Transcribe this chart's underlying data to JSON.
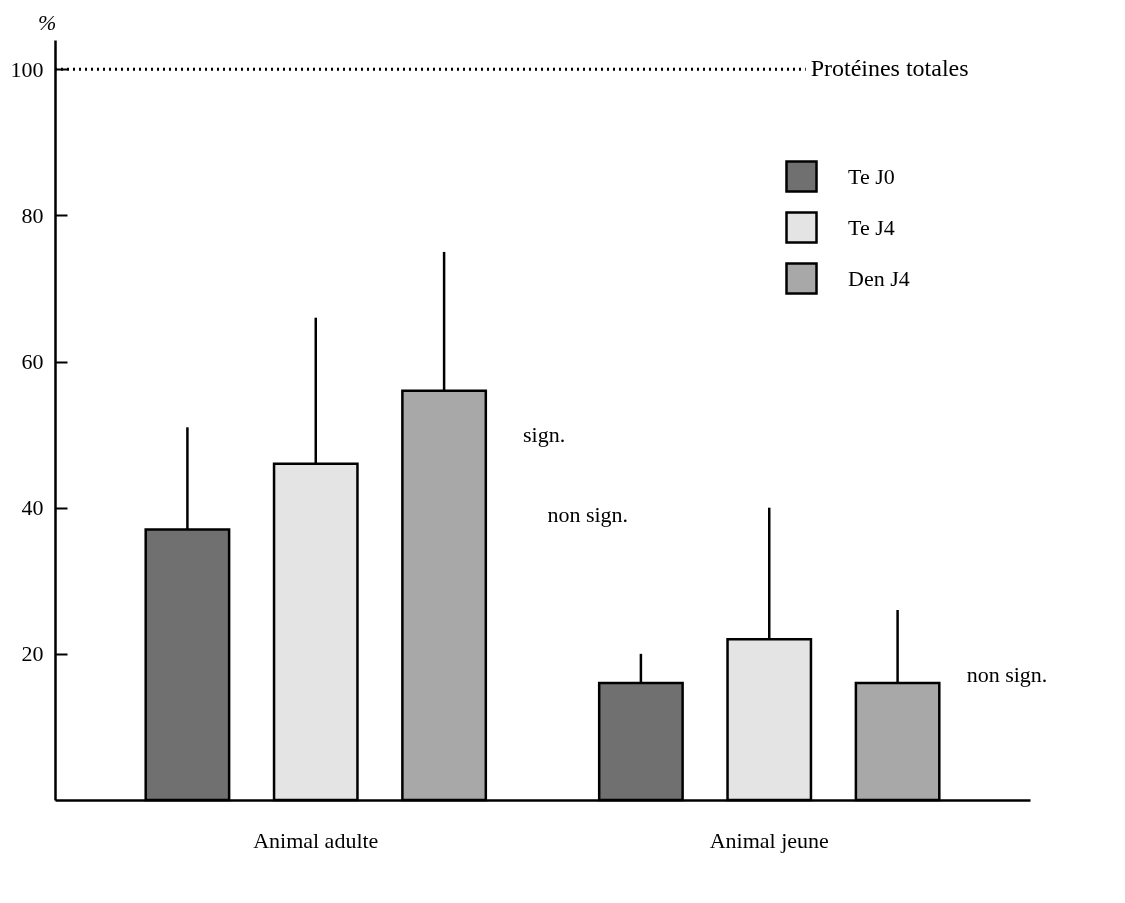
{
  "chart_data": {
    "type": "bar",
    "ylabel": "%",
    "categories": [
      "Animal adulte",
      "Animal jeune"
    ],
    "series": [
      {
        "name": "Te J0",
        "color": "#707070",
        "values": [
          37,
          16
        ],
        "errors": [
          [
            37,
            51
          ],
          [
            16,
            20
          ]
        ]
      },
      {
        "name": "Te J4",
        "color": "#e4e4e4",
        "values": [
          46,
          22
        ],
        "errors": [
          [
            46,
            66
          ],
          [
            22,
            40
          ]
        ]
      },
      {
        "name": "Den J4",
        "color": "#a8a8a8",
        "values": [
          56,
          16
        ],
        "errors": [
          [
            56,
            75
          ],
          [
            16,
            26
          ]
        ]
      }
    ],
    "ylim": [
      0,
      104
    ],
    "yticks": [
      20,
      40,
      60,
      80,
      100
    ],
    "grid": false,
    "legend": "top right",
    "ref_lines": [
      {
        "axis": "y",
        "value": 100,
        "label": "Protéines totales",
        "line_style": "dotted"
      }
    ],
    "annotations": [
      "sign.",
      "non sign.",
      "non sign."
    ]
  }
}
